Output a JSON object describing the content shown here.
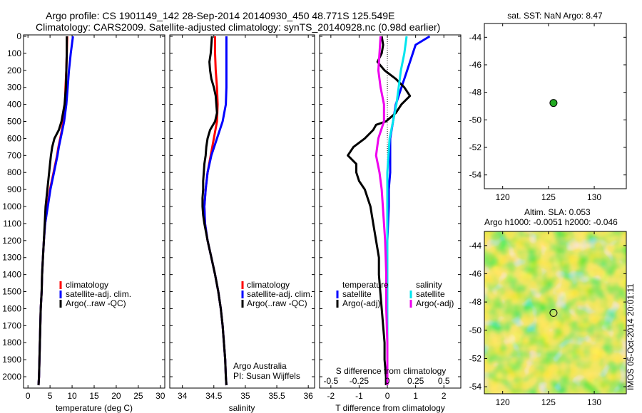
{
  "header": {
    "line1": "Argo profile: CS 1901149_142 28-Sep-2014 20140930_450 48.771S 125.549E",
    "line2": "Climatology: CARS2009. Satellite-adjusted climatology: synTS_20140928.nc (0.98d earlier)"
  },
  "colors": {
    "climatology": "#ff0000",
    "satellite": "#0000ff",
    "argo": "#000000",
    "sal_satellite": "#00e5ee",
    "sal_argo": "#ee00ee",
    "location_marker": "#22aa22"
  },
  "chart_data": [
    {
      "type": "line",
      "name": "temperature-profile",
      "xlabel": "temperature (deg C)",
      "xlim": [
        -1,
        31
      ],
      "ylim": [
        2060,
        0
      ],
      "xticks": [
        "0",
        "5",
        "10",
        "15",
        "20",
        "25",
        "30"
      ],
      "yticks": [
        "0",
        "100",
        "200",
        "300",
        "400",
        "500",
        "600",
        "700",
        "800",
        "900",
        "1000",
        "1100",
        "1200",
        "1300",
        "1400",
        "1500",
        "1600",
        "1700",
        "1800",
        "1900",
        "2000"
      ],
      "legend": [
        "climatology",
        "satellite-adj. clim.",
        "Argo(..raw -QC)"
      ],
      "series": [
        {
          "name": "climatology",
          "depth": [
            0,
            100,
            200,
            300,
            400,
            500,
            550,
            600,
            650,
            700,
            800,
            900,
            1000,
            1100,
            1200,
            1300,
            1400,
            1500,
            1600,
            1700,
            1800,
            1900,
            2000,
            2050
          ],
          "values": [
            8.9,
            8.8,
            8.7,
            8.5,
            8.4,
            8.0,
            7.7,
            7.3,
            6.9,
            6.6,
            5.8,
            5.0,
            4.4,
            3.9,
            3.6,
            3.4,
            3.2,
            3.1,
            2.9,
            2.8,
            2.7,
            2.6,
            2.5,
            2.4
          ]
        },
        {
          "name": "satellite-adj. clim.",
          "depth": [
            0,
            100,
            200,
            300,
            400,
            500,
            550,
            600,
            650,
            700,
            800,
            900,
            1000,
            1100,
            1200,
            1300,
            1400,
            1500,
            1600,
            1700,
            1800,
            1900,
            2000,
            2050
          ],
          "values": [
            10.2,
            9.7,
            9.3,
            9.0,
            8.7,
            8.2,
            7.8,
            7.4,
            7.0,
            6.7,
            5.9,
            5.1,
            4.5,
            3.9,
            3.6,
            3.4,
            3.2,
            3.1,
            2.9,
            2.8,
            2.7,
            2.6,
            2.5,
            2.4
          ]
        },
        {
          "name": "Argo(..raw -QC)",
          "depth": [
            0,
            100,
            200,
            300,
            400,
            500,
            550,
            600,
            650,
            700,
            750,
            800,
            900,
            1000,
            1100,
            1200,
            1300,
            1400,
            1500,
            1600,
            1700,
            1800,
            1900,
            2000,
            2050
          ],
          "values": [
            8.8,
            8.8,
            8.7,
            8.6,
            8.3,
            7.6,
            7.0,
            6.0,
            5.5,
            5.2,
            5.0,
            4.8,
            4.4,
            4.0,
            3.8,
            3.6,
            3.4,
            3.2,
            3.1,
            2.9,
            2.8,
            2.7,
            2.6,
            2.5,
            2.4
          ]
        }
      ]
    },
    {
      "type": "line",
      "name": "salinity-profile",
      "xlabel": "salinity",
      "xlim": [
        33.8,
        36.1
      ],
      "ylim": [
        2060,
        0
      ],
      "xticks": [
        "34",
        "34.5",
        "35",
        "35.5",
        "36"
      ],
      "legend": [
        "climatology",
        "satellite-adj. clim.",
        "Argo(..raw -QC)"
      ],
      "annotation": [
        "Argo Australia",
        "PI: Susan Wijffels"
      ],
      "series": [
        {
          "name": "climatology",
          "depth": [
            0,
            100,
            200,
            300,
            400,
            500,
            600,
            700,
            800,
            900,
            1000,
            1100,
            1200,
            1300,
            1400,
            1500,
            1600,
            1700,
            1800,
            1900,
            2000,
            2050
          ],
          "values": [
            34.52,
            34.52,
            34.53,
            34.55,
            34.56,
            34.55,
            34.5,
            34.45,
            34.4,
            34.37,
            34.35,
            34.36,
            34.4,
            34.46,
            34.52,
            34.57,
            34.61,
            34.64,
            34.66,
            34.68,
            34.69,
            34.7
          ]
        },
        {
          "name": "satellite-adj. clim.",
          "depth": [
            0,
            100,
            200,
            300,
            400,
            500,
            600,
            700,
            800,
            900,
            1000,
            1100,
            1200,
            1300,
            1400,
            1500,
            1600,
            1700,
            1800,
            1900,
            2000,
            2050
          ],
          "values": [
            34.7,
            34.7,
            34.7,
            34.7,
            34.69,
            34.64,
            34.55,
            34.46,
            34.4,
            34.37,
            34.35,
            34.36,
            34.4,
            34.46,
            34.52,
            34.57,
            34.61,
            34.64,
            34.66,
            34.68,
            34.69,
            34.7
          ]
        },
        {
          "name": "Argo(..raw -QC)",
          "depth": [
            0,
            50,
            100,
            150,
            200,
            250,
            300,
            350,
            400,
            450,
            500,
            550,
            600,
            650,
            700,
            750,
            800,
            850,
            900,
            950,
            1000,
            1050,
            1100,
            1200,
            1300,
            1400,
            1500,
            1600,
            1700,
            1800,
            1900,
            2000,
            2050
          ],
          "values": [
            34.47,
            34.46,
            34.45,
            34.43,
            34.44,
            34.46,
            34.5,
            34.53,
            34.54,
            34.55,
            34.52,
            34.44,
            34.4,
            34.38,
            34.37,
            34.35,
            34.34,
            34.33,
            34.33,
            34.32,
            34.32,
            34.33,
            34.35,
            34.4,
            34.46,
            34.52,
            34.57,
            34.61,
            34.64,
            34.66,
            34.68,
            34.69,
            34.7
          ]
        }
      ]
    },
    {
      "type": "line",
      "name": "difference-profile",
      "xlabel": "T difference from climatology",
      "xlabel_top": "S difference from climatology",
      "xlim": [
        -2.4,
        2.6
      ],
      "ylim": [
        2060,
        0
      ],
      "xticks": [
        "-2",
        "-1",
        "0",
        "1",
        "2"
      ],
      "sticks": [
        "-0.5",
        "-0.25",
        "0",
        "0.25",
        "0.5"
      ],
      "s_scale": 4,
      "legend_titles": [
        "temperature",
        "salinity"
      ],
      "legend": [
        "satellite",
        "Argo(-adj)",
        "satellite",
        "Argo(-adj)"
      ],
      "series": [
        {
          "name": "satellite",
          "kind": "temperature",
          "depth": [
            0,
            50,
            100,
            200,
            300,
            400,
            500,
            600,
            700,
            800,
            900,
            1000,
            1200,
            1400,
            1600,
            1800,
            2000,
            2050
          ],
          "values": [
            1.5,
            1.0,
            0.9,
            0.7,
            0.5,
            0.3,
            0.2,
            0.1,
            0.1,
            0.1,
            0.05,
            0.05,
            0,
            0,
            0,
            0,
            0,
            0
          ]
        },
        {
          "name": "Argo(-adj)",
          "kind": "temperature",
          "depth": [
            0,
            50,
            100,
            150,
            200,
            250,
            300,
            350,
            400,
            450,
            500,
            520,
            550,
            600,
            650,
            700,
            750,
            800,
            850,
            900,
            1000,
            1100,
            1200,
            1300,
            1400,
            1500,
            1600,
            1700,
            1800,
            1900,
            2000,
            2050
          ],
          "values": [
            -0.2,
            -0.15,
            -0.2,
            -0.35,
            -0.1,
            0.3,
            0.6,
            0.8,
            0.5,
            0.3,
            -0.05,
            -0.4,
            -0.5,
            -0.8,
            -1.2,
            -1.4,
            -1.1,
            -1.1,
            -1.0,
            -0.8,
            -0.6,
            -0.5,
            -0.4,
            -0.3,
            -0.3,
            -0.25,
            -0.2,
            -0.15,
            -0.1,
            -0.1,
            -0.05,
            -0.05
          ]
        },
        {
          "name": "satellite",
          "kind": "salinity",
          "depth": [
            0,
            100,
            200,
            300,
            400,
            500,
            600,
            700,
            800,
            900,
            1000,
            1200,
            1400,
            1600,
            1800,
            2000,
            2050
          ],
          "values": [
            0.17,
            0.15,
            0.12,
            0.1,
            0.08,
            0.05,
            0.02,
            0.01,
            0,
            0,
            0,
            0,
            0,
            0,
            0,
            0,
            0
          ]
        },
        {
          "name": "Argo(-adj)",
          "kind": "salinity",
          "depth": [
            0,
            100,
            200,
            300,
            400,
            500,
            600,
            700,
            800,
            900,
            1000,
            1100,
            1200,
            1400,
            1600,
            1800,
            2000,
            2050
          ],
          "values": [
            -0.06,
            -0.07,
            -0.08,
            -0.06,
            -0.03,
            -0.03,
            -0.08,
            -0.1,
            -0.07,
            -0.05,
            -0.04,
            -0.03,
            -0.02,
            -0.01,
            -0.01,
            0,
            0,
            0
          ]
        }
      ]
    },
    {
      "type": "scatter",
      "name": "location-map",
      "title": "sat. SST: NaN Argo: 8.47",
      "xlim": [
        118,
        133.5
      ],
      "ylim": [
        -55,
        -43
      ],
      "xticks": [
        "120",
        "125",
        "130"
      ],
      "yticks": [
        "-44",
        "-46",
        "-48",
        "-50",
        "-52",
        "-54"
      ],
      "points": [
        {
          "x": 125.549,
          "y": -48.771
        }
      ]
    },
    {
      "type": "heatmap",
      "name": "sla-map",
      "title": "Altim. SLA: 0.053",
      "subtitle": "Argo h1000: -0.0051 h2000: -0.046",
      "xlim": [
        118,
        133.5
      ],
      "ylim": [
        -54.5,
        -43
      ],
      "xticks": [
        "120",
        "125",
        "130"
      ],
      "yticks": [
        "-44",
        "-46",
        "-48",
        "-50",
        "-52",
        "-54"
      ],
      "points": [
        {
          "x": 125.549,
          "y": -48.771
        }
      ],
      "side_label": "IMOS 05-Oct-2014 20:01:11"
    }
  ]
}
